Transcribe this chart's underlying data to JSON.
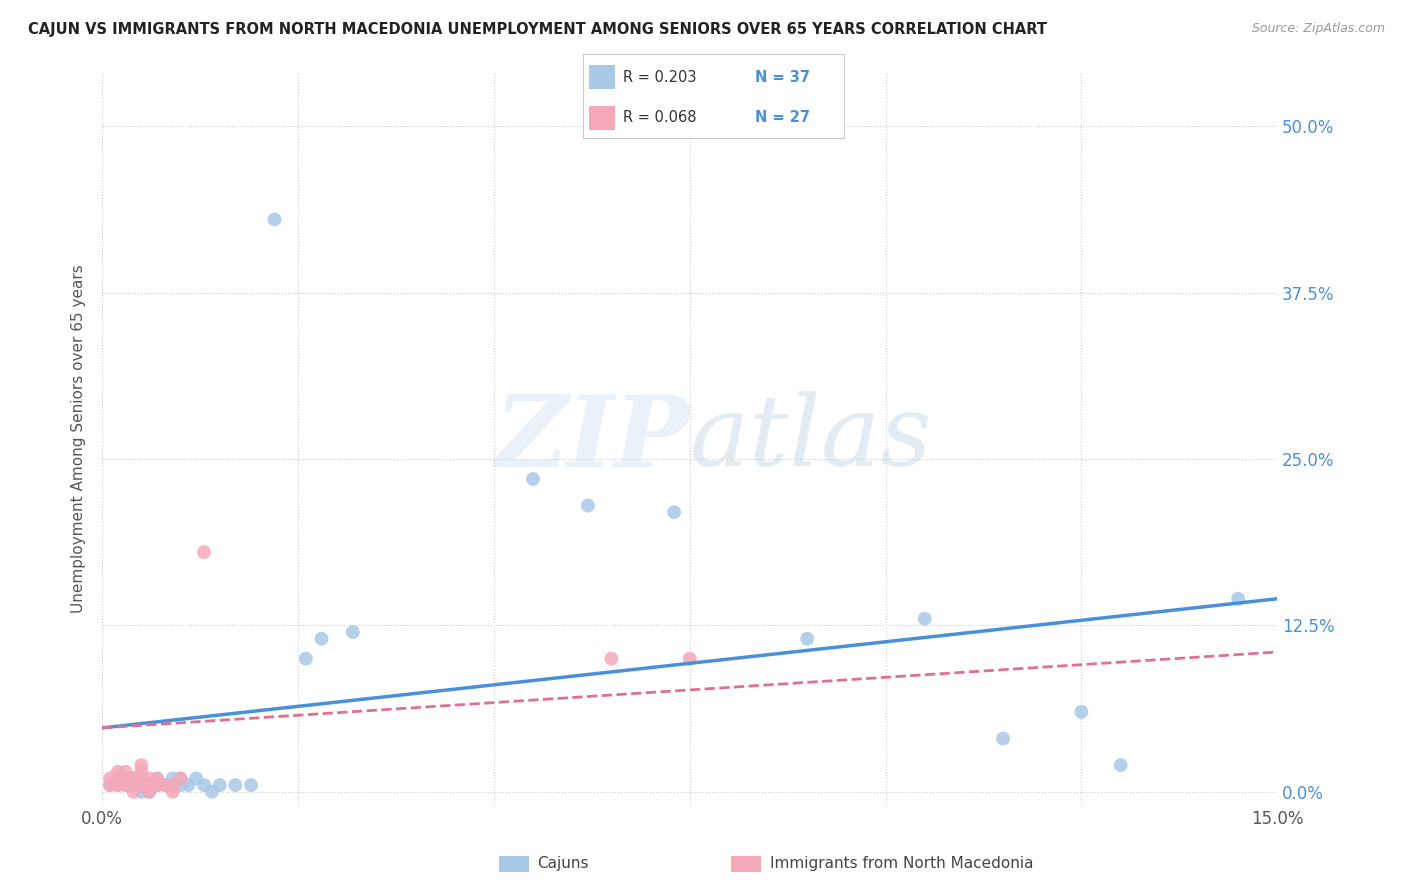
{
  "title": "CAJUN VS IMMIGRANTS FROM NORTH MACEDONIA UNEMPLOYMENT AMONG SENIORS OVER 65 YEARS CORRELATION CHART",
  "source": "Source: ZipAtlas.com",
  "ylabel": "Unemployment Among Seniors over 65 years",
  "xlim": [
    0.0,
    0.15
  ],
  "ylim": [
    -0.01,
    0.54
  ],
  "yticks": [
    0.0,
    0.125,
    0.25,
    0.375,
    0.5
  ],
  "xticks": [
    0.0,
    0.025,
    0.05,
    0.075,
    0.1,
    0.125,
    0.15
  ],
  "legend_r_cajun": "R = 0.203",
  "legend_n_cajun": "N = 37",
  "legend_r_nmac": "R = 0.068",
  "legend_n_nmac": "N = 27",
  "cajun_color": "#a8c8e8",
  "nmac_color": "#f4a8b8",
  "trend_cajun_color": "#4a90d9",
  "trend_nmac_color": "#e07090",
  "watermark_zip": "ZIP",
  "watermark_atlas": "atlas",
  "cajun_label": "Cajuns",
  "nmac_label": "Immigrants from North Macedonia",
  "cajun_scatter": [
    [
      0.001,
      0.005
    ],
    [
      0.002,
      0.005
    ],
    [
      0.003,
      0.005
    ],
    [
      0.003,
      0.01
    ],
    [
      0.004,
      0.005
    ],
    [
      0.004,
      0.01
    ],
    [
      0.005,
      0.005
    ],
    [
      0.005,
      0.0
    ],
    [
      0.006,
      0.005
    ],
    [
      0.006,
      0.0
    ],
    [
      0.007,
      0.005
    ],
    [
      0.007,
      0.01
    ],
    [
      0.008,
      0.005
    ],
    [
      0.009,
      0.01
    ],
    [
      0.009,
      0.005
    ],
    [
      0.01,
      0.005
    ],
    [
      0.01,
      0.01
    ],
    [
      0.011,
      0.005
    ],
    [
      0.012,
      0.01
    ],
    [
      0.013,
      0.005
    ],
    [
      0.014,
      0.0
    ],
    [
      0.015,
      0.005
    ],
    [
      0.017,
      0.005
    ],
    [
      0.019,
      0.005
    ],
    [
      0.022,
      0.43
    ],
    [
      0.026,
      0.1
    ],
    [
      0.028,
      0.115
    ],
    [
      0.032,
      0.12
    ],
    [
      0.055,
      0.235
    ],
    [
      0.062,
      0.215
    ],
    [
      0.073,
      0.21
    ],
    [
      0.09,
      0.115
    ],
    [
      0.105,
      0.13
    ],
    [
      0.115,
      0.04
    ],
    [
      0.125,
      0.06
    ],
    [
      0.13,
      0.02
    ],
    [
      0.145,
      0.145
    ]
  ],
  "nmac_scatter": [
    [
      0.001,
      0.005
    ],
    [
      0.001,
      0.01
    ],
    [
      0.002,
      0.005
    ],
    [
      0.002,
      0.01
    ],
    [
      0.002,
      0.015
    ],
    [
      0.003,
      0.005
    ],
    [
      0.003,
      0.01
    ],
    [
      0.003,
      0.015
    ],
    [
      0.004,
      0.005
    ],
    [
      0.004,
      0.01
    ],
    [
      0.004,
      0.0
    ],
    [
      0.005,
      0.005
    ],
    [
      0.005,
      0.01
    ],
    [
      0.005,
      0.015
    ],
    [
      0.005,
      0.02
    ],
    [
      0.006,
      0.005
    ],
    [
      0.006,
      0.0
    ],
    [
      0.006,
      0.01
    ],
    [
      0.007,
      0.005
    ],
    [
      0.007,
      0.01
    ],
    [
      0.008,
      0.005
    ],
    [
      0.009,
      0.005
    ],
    [
      0.009,
      0.0
    ],
    [
      0.01,
      0.01
    ],
    [
      0.013,
      0.18
    ],
    [
      0.065,
      0.1
    ],
    [
      0.075,
      0.1
    ]
  ]
}
